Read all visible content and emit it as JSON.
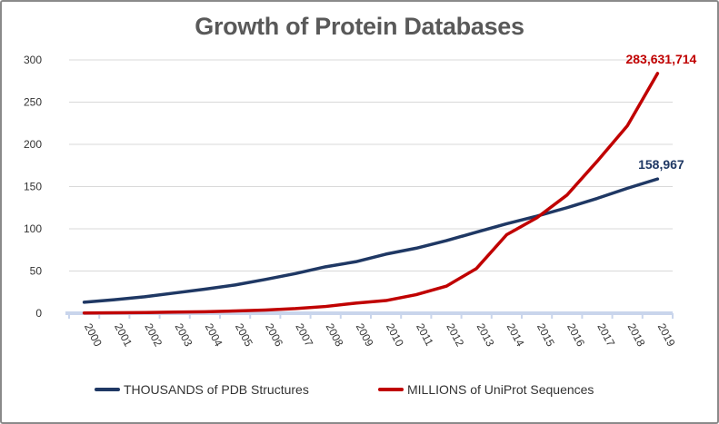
{
  "chart_data": {
    "type": "line",
    "title": "Growth of Protein Databases",
    "xlabel": "",
    "ylabel": "",
    "ylim": [
      0,
      300
    ],
    "yticks": [
      0,
      50,
      100,
      150,
      200,
      250,
      300
    ],
    "grid": true,
    "legend_position": "bottom",
    "categories": [
      "2000",
      "2001",
      "2002",
      "2003",
      "2004",
      "2005",
      "2006",
      "2007",
      "2008",
      "2009",
      "2010",
      "2011",
      "2012",
      "2013",
      "2014",
      "2015",
      "2016",
      "2017",
      "2018",
      "2019"
    ],
    "series": [
      {
        "name": "THOUSANDS of PDB Structures",
        "color": "#1f3864",
        "values": [
          13,
          16,
          19.5,
          24,
          28.5,
          33.5,
          40,
          47,
          55,
          61,
          70,
          77,
          86,
          96,
          106,
          115,
          125,
          136,
          148,
          159
        ],
        "end_label": "158,967"
      },
      {
        "name": "MILLIONS of UniProt Sequences",
        "color": "#c00000",
        "values": [
          0.3,
          0.5,
          0.8,
          1.3,
          1.8,
          2.7,
          3.8,
          5.5,
          8,
          12,
          15,
          22,
          32,
          53,
          93,
          113,
          140,
          180,
          222,
          284
        ],
        "end_label": "283,631,714"
      }
    ]
  }
}
